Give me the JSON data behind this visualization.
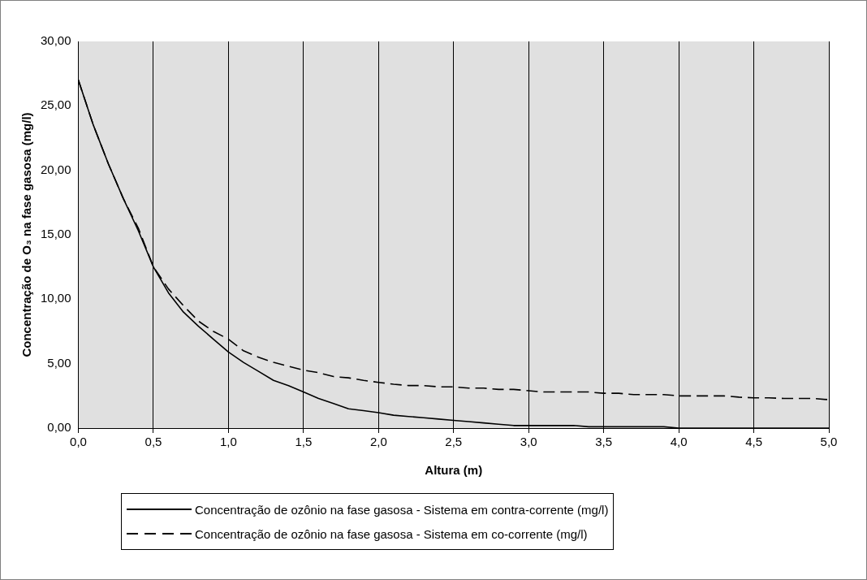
{
  "chart_data": {
    "type": "line",
    "xlabel": "Altura (m)",
    "ylabel": "Concentração de O₃ na fase gasosa (mg/l)",
    "x": [
      0,
      0.1,
      0.2,
      0.3,
      0.4,
      0.5,
      0.6,
      0.7,
      0.8,
      0.9,
      1.0,
      1.1,
      1.2,
      1.3,
      1.4,
      1.5,
      1.6,
      1.7,
      1.8,
      1.9,
      2.0,
      2.1,
      2.2,
      2.3,
      2.4,
      2.5,
      2.6,
      2.7,
      2.8,
      2.9,
      3.0,
      3.1,
      3.2,
      3.3,
      3.4,
      3.5,
      3.6,
      3.7,
      3.8,
      3.9,
      4.0,
      4.1,
      4.2,
      4.3,
      4.4,
      4.5,
      4.6,
      4.7,
      4.8,
      4.9,
      5.0
    ],
    "series": [
      {
        "name": "Concentração de ozônio na fase gasosa - Sistema em contra-corrente (mg/l)",
        "color": "#000000",
        "line_style": "solid",
        "values": [
          27.0,
          23.5,
          20.5,
          17.8,
          15.3,
          12.5,
          10.5,
          9.0,
          7.9,
          6.9,
          5.9,
          5.1,
          4.4,
          3.7,
          3.3,
          2.8,
          2.3,
          1.9,
          1.5,
          1.35,
          1.2,
          1.0,
          0.9,
          0.8,
          0.7,
          0.6,
          0.5,
          0.4,
          0.3,
          0.2,
          0.2,
          0.2,
          0.2,
          0.2,
          0.1,
          0.1,
          0.1,
          0.1,
          0.1,
          0.1,
          0,
          0,
          0,
          0,
          0,
          0,
          0,
          0,
          0,
          0,
          0
        ]
      },
      {
        "name": "Concentração de ozônio na fase gasosa - Sistema em co-corrente (mg/l)",
        "color": "#000000",
        "line_style": "dashed",
        "values": [
          27.0,
          23.5,
          20.5,
          17.8,
          15.5,
          12.5,
          10.8,
          9.5,
          8.3,
          7.5,
          6.9,
          6.0,
          5.5,
          5.1,
          4.8,
          4.5,
          4.3,
          4.0,
          3.9,
          3.7,
          3.55,
          3.4,
          3.3,
          3.3,
          3.2,
          3.2,
          3.1,
          3.1,
          3.0,
          3.0,
          2.9,
          2.8,
          2.8,
          2.8,
          2.8,
          2.7,
          2.7,
          2.6,
          2.6,
          2.6,
          2.5,
          2.5,
          2.5,
          2.5,
          2.4,
          2.35,
          2.35,
          2.3,
          2.3,
          2.3,
          2.2
        ]
      }
    ],
    "xlim": [
      0,
      5
    ],
    "xticks": [
      {
        "value": 0,
        "label": "0,0"
      },
      {
        "value": 0.5,
        "label": "0,5"
      },
      {
        "value": 1,
        "label": "1,0"
      },
      {
        "value": 1.5,
        "label": "1,5"
      },
      {
        "value": 2,
        "label": "2,0"
      },
      {
        "value": 2.5,
        "label": "2,5"
      },
      {
        "value": 3,
        "label": "3,0"
      },
      {
        "value": 3.5,
        "label": "3,5"
      },
      {
        "value": 4,
        "label": "4,0"
      },
      {
        "value": 4.5,
        "label": "4,5"
      },
      {
        "value": 5,
        "label": "5,0"
      }
    ],
    "ylim": [
      0,
      30
    ],
    "yticks": [
      {
        "value": 0,
        "label": "0,00"
      },
      {
        "value": 5,
        "label": "5,00"
      },
      {
        "value": 10,
        "label": "10,00"
      },
      {
        "value": 15,
        "label": "15,00"
      },
      {
        "value": 20,
        "label": "20,00"
      },
      {
        "value": 25,
        "label": "25,00"
      },
      {
        "value": 30,
        "label": "30,00"
      }
    ],
    "grid": "x",
    "legend": "bottom",
    "marker": "none"
  }
}
